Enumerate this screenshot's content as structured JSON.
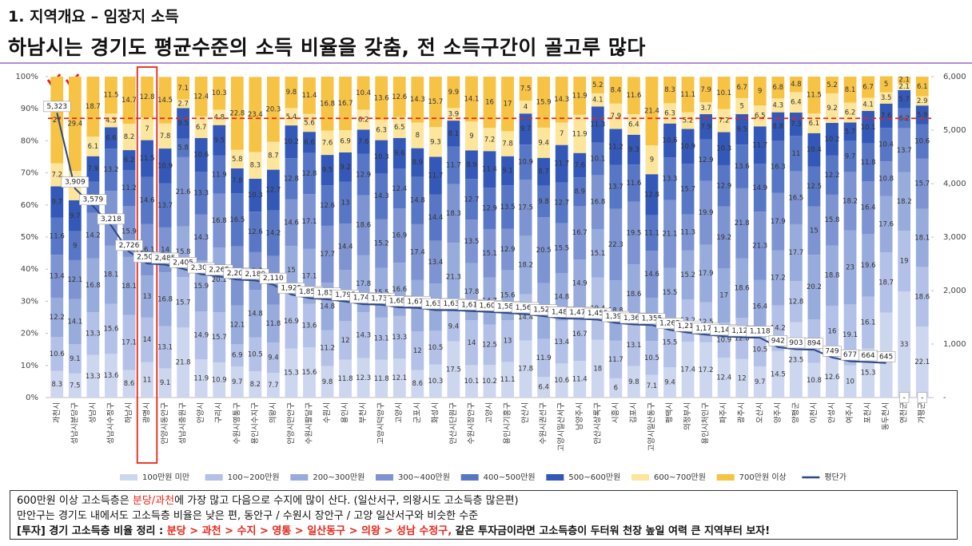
{
  "subtitle": "1. 지역개요 – 임장지 소득",
  "title": "하남시는 경기도 평균수준의 소득 비율을 갖춤, 전 소득구간이 골고루 많다",
  "chart_data": {
    "type": "bar",
    "stacked": true,
    "categories": [
      "과천시",
      "성남시분당구",
      "성남시",
      "성남시수정구",
      "하남시",
      "광명시",
      "안양시동안구",
      "성남시중원구",
      "안양시",
      "구리시",
      "수원시영통구",
      "용인시수지구",
      "의왕시",
      "안양시만안구",
      "수원시팔달구",
      "수원시",
      "용인시",
      "부천시",
      "고양시덕양구",
      "고양시",
      "군포시",
      "화성시",
      "안산시단원구",
      "수원시장안구",
      "고양시",
      "용인시기흥구",
      "안산시",
      "수원시권선구",
      "고양시일산서구",
      "남양주시",
      "안산시상록구",
      "시흥시",
      "김포시",
      "고양시일산동구",
      "평택시",
      "의정부시",
      "용인시처인구",
      "파주시",
      "광주시",
      "오산시",
      "양주시",
      "양평군",
      "이천시",
      "안성시",
      "여주시",
      "포천시",
      "동두천시",
      "연천군",
      "가평군"
    ],
    "ylim": [
      0,
      100
    ],
    "yticks": [
      {
        "value": 0,
        "label": "0%"
      },
      {
        "value": 10,
        "label": "10%"
      },
      {
        "value": 20,
        "label": "20%"
      },
      {
        "value": 30,
        "label": "30%"
      },
      {
        "value": 40,
        "label": "40%"
      },
      {
        "value": 50,
        "label": "50%"
      },
      {
        "value": 60,
        "label": "60%"
      },
      {
        "value": 70,
        "label": "70%"
      },
      {
        "value": 80,
        "label": "80%"
      },
      {
        "value": 90,
        "label": "90%"
      },
      {
        "value": 100,
        "label": "100%"
      }
    ],
    "y2lim": [
      0,
      6000
    ],
    "y2ticks": [
      {
        "value": 0,
        "label": "-"
      },
      {
        "value": 1000,
        "label": "1,000"
      },
      {
        "value": 2000,
        "label": "2,000"
      },
      {
        "value": 3000,
        "label": "3,000"
      },
      {
        "value": 4000,
        "label": "4,000"
      },
      {
        "value": 5000,
        "label": "5,000"
      },
      {
        "value": 6000,
        "label": "6,000"
      }
    ],
    "grid": false,
    "reference_y": 87,
    "reference_color": "#e8261a",
    "highlight_index": 5,
    "legend": "bottom",
    "series": [
      {
        "name": "100만원 미만",
        "color": "#cdd6ef",
        "values": [
          8.3,
          7.5,
          13.3,
          13.6,
          8.6,
          11,
          9.1,
          21.8,
          11.9,
          10.9,
          9.7,
          8.2,
          7.7,
          15.3,
          15.6,
          9.8,
          11.8,
          12.3,
          11.8,
          12.1,
          8.6,
          10.3,
          17.5,
          10.1,
          10.2,
          11.1,
          17.8,
          6.4,
          10.6,
          11.4,
          18,
          6,
          9.8,
          7.1,
          9.4,
          17.4,
          17.2,
          12.4,
          12,
          9.7,
          14.5,
          23.5,
          10.8,
          12.6,
          10,
          15.3,
          26.5,
          33,
          22.1
        ]
      },
      {
        "name": "100~200만원",
        "color": "#b3c0e7",
        "values": [
          10.6,
          9.1,
          13.3,
          15.6,
          17.1,
          14,
          13.1,
          15.7,
          14.9,
          15.7,
          6.9,
          10.5,
          9.4,
          16.9,
          13.6,
          11.2,
          12,
          14.3,
          13.1,
          13.3,
          12,
          10.5,
          9.4,
          14,
          12.5,
          13,
          14.4,
          11.9,
          13.4,
          16.7,
          19.4,
          11.7,
          13.1,
          10.5,
          15.5,
          13.2,
          12.5,
          10.9,
          12.8,
          10.5,
          14.2,
          12.8,
          13.5,
          16,
          19.1,
          16.1,
          18.7,
          19,
          18.6
        ]
      },
      {
        "name": "200~300만원",
        "color": "#98abdd",
        "values": [
          12.2,
          14.1,
          16.8,
          18.1,
          18.1,
          13,
          16.8,
          15.8,
          15.9,
          20.1,
          12.1,
          14.8,
          11.8,
          15,
          17.1,
          14.8,
          16,
          17.8,
          15.5,
          16.6,
          16,
          14.7,
          21.3,
          17.8,
          14.7,
          15.6,
          18.2,
          17.4,
          14.8,
          14.9,
          15.1,
          18.8,
          18.6,
          13.5,
          15.5,
          15.2,
          17.9,
          17,
          18.6,
          16.4,
          17.2,
          17.7,
          20.2,
          18.8,
          23,
          19.6,
          17.6,
          18.2,
          18.1
        ]
      },
      {
        "name": "300~400만원",
        "color": "#7d93d2",
        "values": [
          13.4,
          12.1,
          14.2,
          17.1,
          15.9,
          16.1,
          14,
          21.6,
          14.3,
          16.8,
          18.4,
          11.8,
          15.2,
          14.6,
          17.1,
          17.7,
          14.4,
          18.6,
          15.2,
          16.9,
          17.4,
          13.4,
          18.3,
          13.5,
          15.1,
          12.9,
          17.5,
          20.5,
          15.5,
          16.7,
          16.8,
          22.3,
          19.5,
          14.6,
          21.1,
          11.3,
          19.9,
          19.2,
          21.8,
          21.3,
          17.9,
          16.5,
          15,
          15.8,
          18.2,
          16.4,
          10.8,
          13.7,
          15.7
        ]
      },
      {
        "name": "400~500만원",
        "color": "#5777c6",
        "values": [
          11.6,
          9,
          9.7,
          13.2,
          11.2,
          14.6,
          13.7,
          5.8,
          13.3,
          11.9,
          16.5,
          12.6,
          14.2,
          12.8,
          12.8,
          12.6,
          13,
          12.9,
          14.3,
          12.4,
          14.8,
          14.4,
          11.7,
          12.7,
          12.9,
          13.5,
          10.9,
          9.8,
          12.7,
          8.9,
          10.1,
          13.7,
          11.6,
          11.1,
          13.3,
          15.7,
          12.9,
          12.9,
          13.6,
          14.9,
          16.3,
          11,
          12.5,
          12.2,
          9.7,
          11.8,
          10.4,
          6.2,
          10.6
        ]
      },
      {
        "name": "500~600만원",
        "color": "#3358b8",
        "values": [
          9.7,
          9.7,
          7.9,
          6.6,
          6.2,
          11.5,
          10.9,
          9.5,
          10.6,
          9.5,
          7.8,
          10.3,
          12.7,
          10.2,
          6.6,
          9.5,
          9.2,
          7.6,
          10.3,
          9.6,
          8.9,
          11.7,
          8.1,
          8.9,
          11.4,
          9.1,
          9.7,
          8.7,
          11.7,
          7.6,
          11.3,
          11.2,
          9.3,
          12.8,
          10.6,
          10.9,
          7.9,
          10.3,
          9.5,
          11.7,
          8.8,
          7.3,
          10.4,
          10.2,
          5.7,
          10.1,
          7.6,
          5.7,
          5.9
        ]
      },
      {
        "name": "600~700만원",
        "color": "#fde69c",
        "values": [
          7.2,
          9.1,
          6.1,
          4.3,
          8.2,
          7,
          7.8,
          2.7,
          6.7,
          4.8,
          5.8,
          8.3,
          8.7,
          5.4,
          5.6,
          7.6,
          6.9,
          6.2,
          6.3,
          6.5,
          8,
          9.3,
          3.9,
          9,
          7.2,
          7.8,
          4,
          9.4,
          7,
          11.9,
          4.1,
          7.9,
          6.4,
          9,
          6.3,
          5.2,
          3.7,
          7.2,
          5,
          6.5,
          4.3,
          6.4,
          6.1,
          9.2,
          6.2,
          4.1,
          3.5,
          2.1,
          2.9
        ]
      },
      {
        "name": "700만원 이상",
        "color": "#f7c344",
        "values": [
          27,
          29.4,
          18.7,
          11.5,
          14.7,
          12.8,
          14.5,
          7.1,
          12.4,
          10.3,
          22.8,
          23.4,
          20.3,
          9.8,
          11.4,
          16.8,
          16.7,
          10.4,
          13.6,
          12.6,
          14.3,
          15.7,
          9.9,
          14.1,
          16,
          17,
          7.5,
          15.9,
          14.3,
          11.9,
          5.2,
          8.4,
          11.6,
          21.4,
          8.3,
          11.1,
          7.9,
          10.1,
          6.7,
          9,
          6.8,
          4.8,
          11.5,
          5.2,
          8.1,
          6.7,
          5,
          2.1,
          6.1
        ]
      },
      {
        "name": "평단가",
        "type": "line",
        "axis": "y2",
        "color": "#2b4787",
        "values": [
          5323,
          3909,
          3579,
          3218,
          2726,
          2505,
          2485,
          2405,
          2305,
          2265,
          2205,
          2189,
          2110,
          1925,
          1859,
          1835,
          1795,
          1745,
          1735,
          1685,
          1675,
          1635,
          1632,
          1615,
          1600,
          1580,
          1560,
          1520,
          1480,
          1472,
          1455,
          1395,
          1365,
          1355,
          1265,
          1215,
          1175,
          1145,
          1125,
          1118,
          942,
          903,
          894,
          749,
          677,
          664,
          645,
          null,
          null
        ],
        "value_labels": [
          "5,323",
          "3,909",
          "3,579",
          "3,218",
          "2,726",
          "2,505",
          "2,485",
          "2,405",
          "2,305",
          "2,265",
          "2,205",
          "2,189",
          "2,110",
          "1,925",
          "1,859",
          "1,835",
          "1,795",
          "1,745",
          "1,735",
          "1,685",
          "1,675",
          "1,635",
          "1,632",
          "1,615",
          "1,600",
          "1,580",
          "1,560",
          "1,520",
          "1,480",
          "1,472",
          "1,455",
          "1,395",
          "1,365",
          "1,355",
          "1,265",
          "1,215",
          "1,175",
          "1,145",
          "1,125",
          "1,118",
          "942",
          "903",
          "894",
          "749",
          "677",
          "664",
          "645",
          "-",
          "-"
        ]
      }
    ]
  },
  "notes": [
    [
      {
        "text": "600만원 이상 고소득층은 "
      },
      {
        "text": "분당/과천",
        "highlight": true
      },
      {
        "text": "에 가장 많고 다음으로 수지에 많이 산다. (일산서구, 의왕시도 고소득층 많은편)"
      }
    ],
    [
      {
        "text": "만안구는 경기도 내에서도 고소득층 비율은 낮은 편, 동안구 / 수원시 장안구  / 고양 일산서구와 비슷한 수준"
      }
    ],
    [
      {
        "text": "[투자] 경기 고소득층 비율 정리 : ",
        "strong": true
      },
      {
        "text": "분당 > 과천 > 수지 > 영통 > 일산동구 > 의왕  > 성남 수정구,",
        "strong": true,
        "highlight": true
      },
      {
        "text": " 같은 투자금이라면 고소득층이 두터워 천장 높일 여력 큰 지역부터 보자!",
        "strong": true
      }
    ]
  ]
}
